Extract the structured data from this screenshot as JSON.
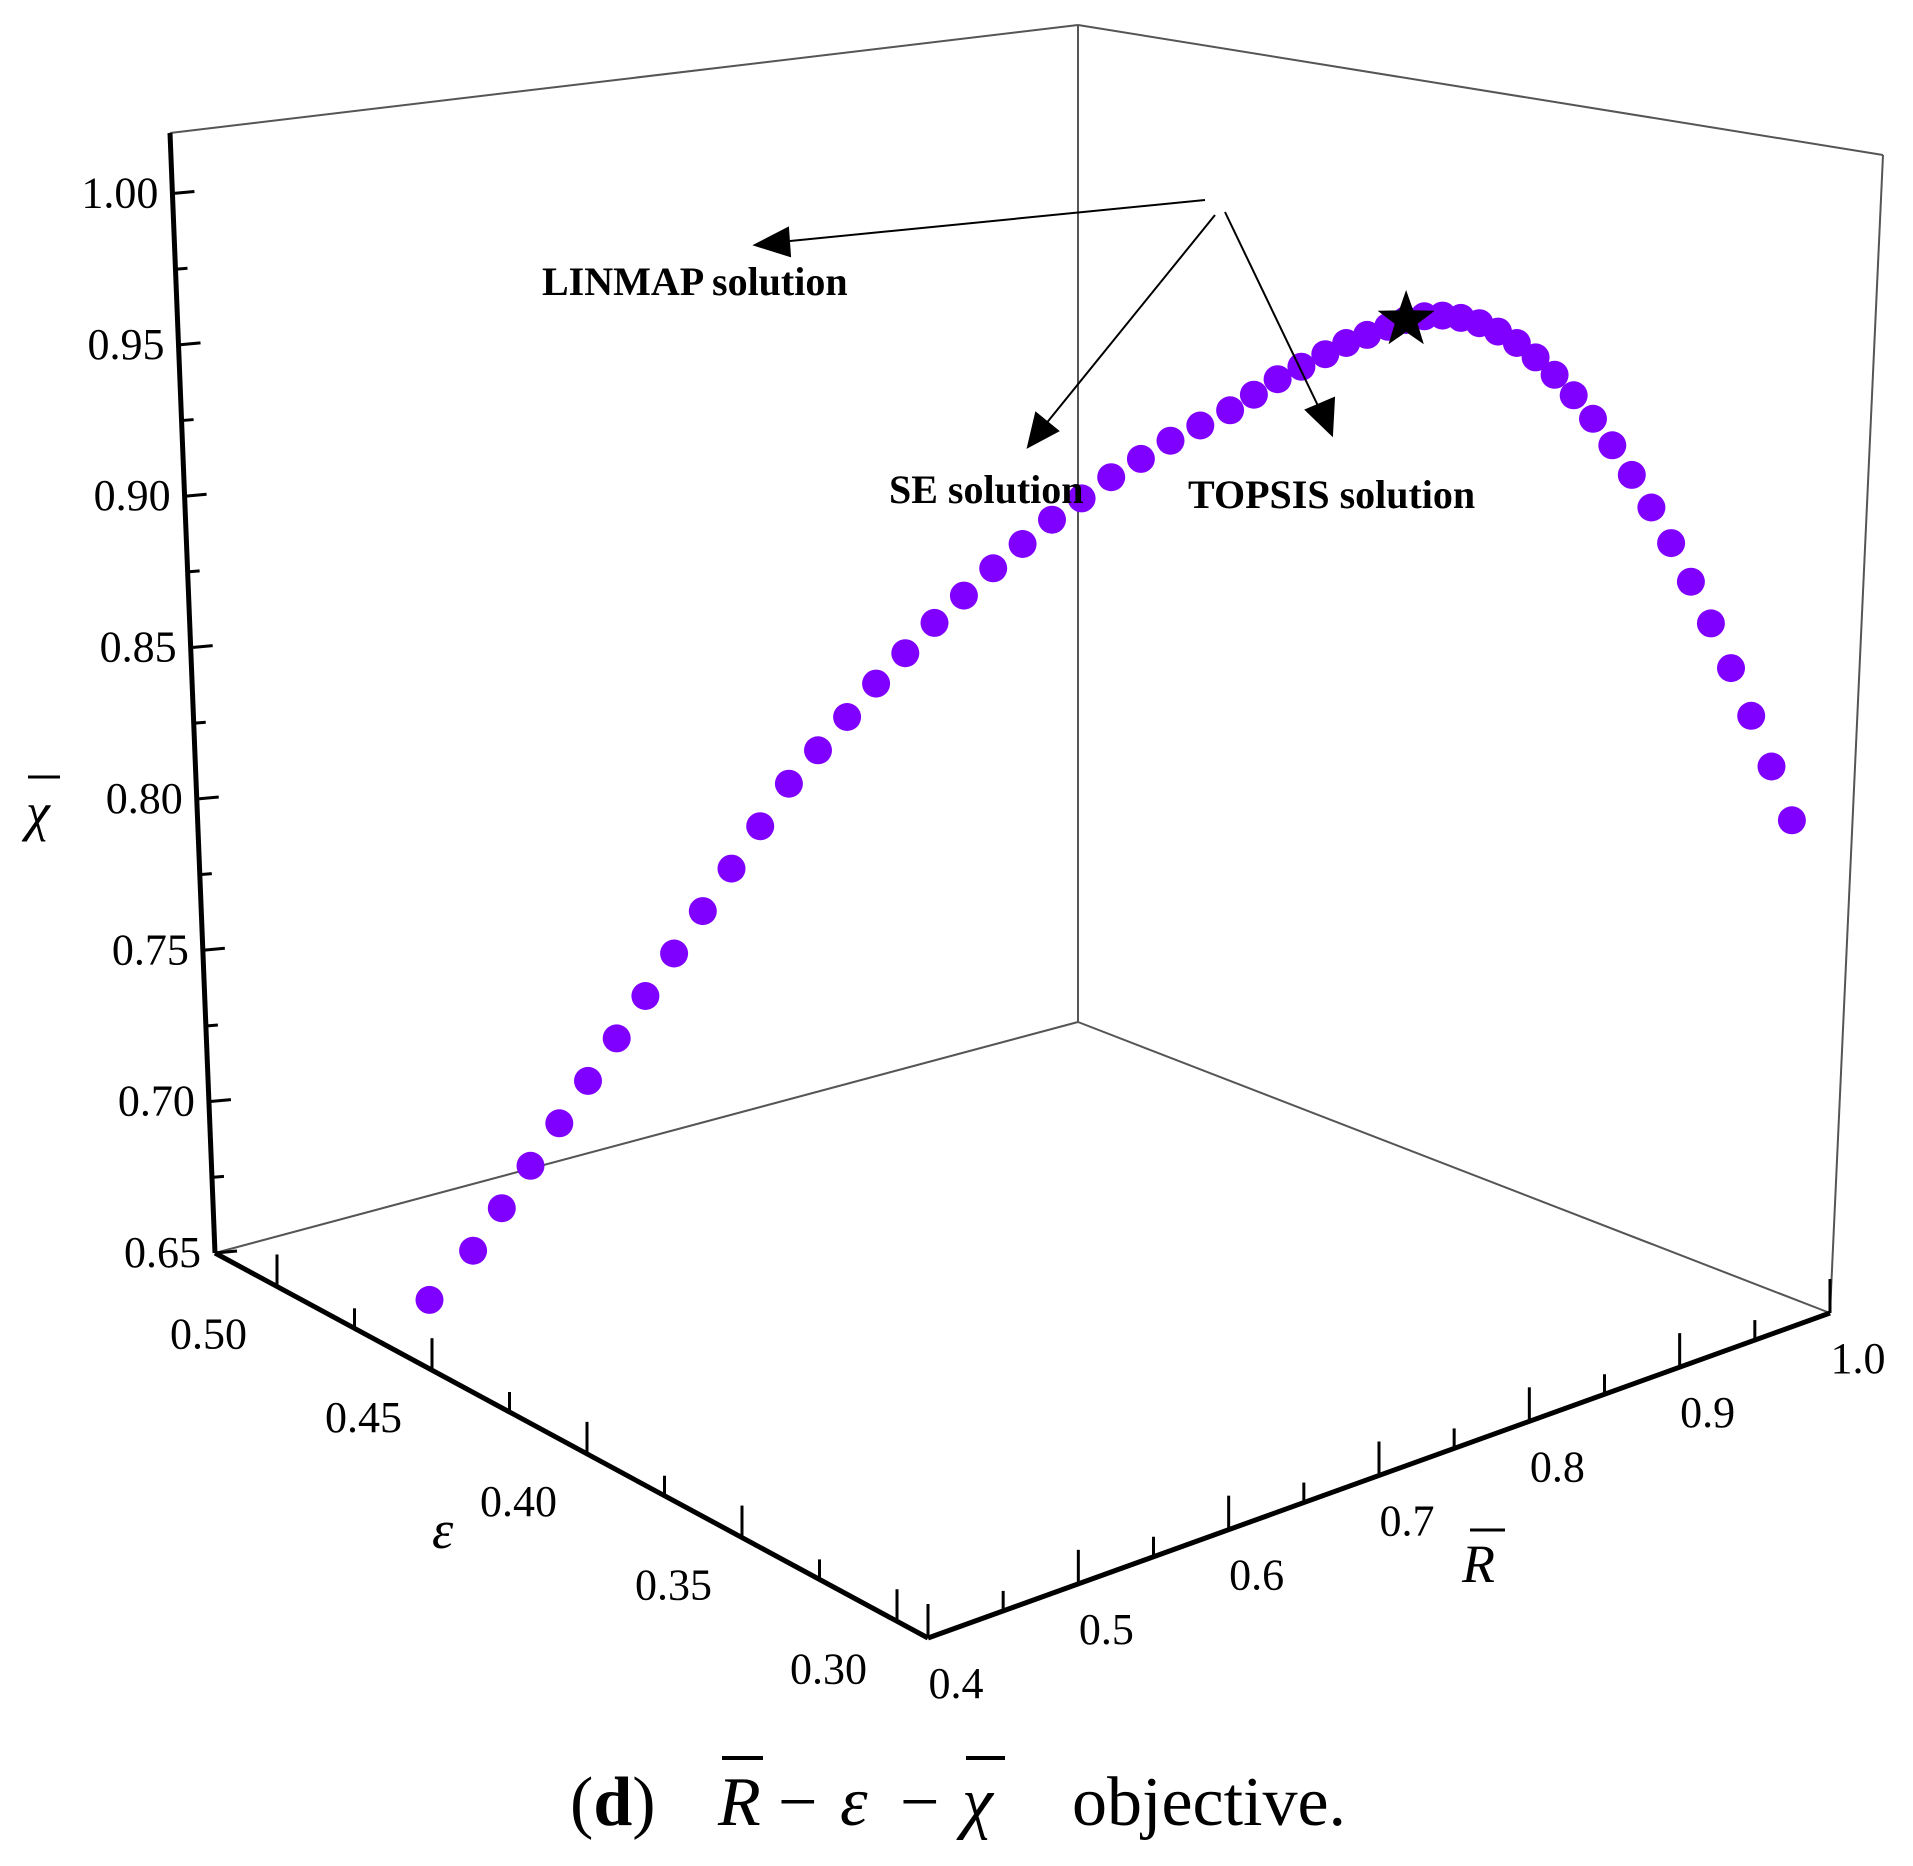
{
  "chart_data": {
    "type": "scatter3d",
    "title": "",
    "caption": {
      "panel": "d",
      "text_parts": [
        "R",
        "−",
        "ε",
        "−",
        "χ",
        "objective."
      ]
    },
    "axes": {
      "x": {
        "label": "R",
        "ticks": [
          "0.4",
          "0.5",
          "0.6",
          "0.7",
          "0.8",
          "0.9",
          "1.0"
        ],
        "range": [
          0.4,
          1.0
        ]
      },
      "y": {
        "label": "ε",
        "ticks": [
          "0.30",
          "0.35",
          "0.40",
          "0.45",
          "0.50"
        ],
        "range": [
          0.29,
          0.52
        ]
      },
      "z": {
        "label": "χ",
        "ticks": [
          "0.65",
          "0.70",
          "0.75",
          "0.80",
          "0.85",
          "0.90",
          "0.95",
          "1.00"
        ],
        "range": [
          0.65,
          1.02
        ]
      }
    },
    "grid": false,
    "colors": {
      "points": "#8000ff",
      "marker": "#000000",
      "axes": "#000000"
    },
    "series": [
      {
        "marker": "circle",
        "points": [
          [
            0.44,
            0.47,
            0.655
          ],
          [
            0.45,
            0.46,
            0.675
          ],
          [
            0.46,
            0.455,
            0.69
          ],
          [
            0.47,
            0.45,
            0.705
          ],
          [
            0.48,
            0.445,
            0.72
          ],
          [
            0.49,
            0.44,
            0.735
          ],
          [
            0.5,
            0.435,
            0.75
          ],
          [
            0.51,
            0.43,
            0.765
          ],
          [
            0.52,
            0.425,
            0.78
          ],
          [
            0.53,
            0.42,
            0.795
          ],
          [
            0.54,
            0.415,
            0.81
          ],
          [
            0.55,
            0.41,
            0.825
          ],
          [
            0.56,
            0.405,
            0.84
          ],
          [
            0.57,
            0.4,
            0.852
          ],
          [
            0.58,
            0.395,
            0.864
          ],
          [
            0.59,
            0.39,
            0.876
          ],
          [
            0.6,
            0.385,
            0.887
          ],
          [
            0.61,
            0.38,
            0.898
          ],
          [
            0.62,
            0.375,
            0.908
          ],
          [
            0.63,
            0.37,
            0.918
          ],
          [
            0.64,
            0.365,
            0.927
          ],
          [
            0.65,
            0.36,
            0.936
          ],
          [
            0.66,
            0.355,
            0.944
          ],
          [
            0.67,
            0.35,
            0.952
          ],
          [
            0.68,
            0.345,
            0.959
          ],
          [
            0.69,
            0.34,
            0.966
          ],
          [
            0.7,
            0.335,
            0.972
          ],
          [
            0.71,
            0.33,
            0.978
          ],
          [
            0.72,
            0.327,
            0.983
          ],
          [
            0.73,
            0.324,
            0.988
          ],
          [
            0.74,
            0.321,
            0.992
          ],
          [
            0.75,
            0.318,
            0.996
          ],
          [
            0.76,
            0.316,
            0.999
          ],
          [
            0.77,
            0.314,
            1.001
          ],
          [
            0.78,
            0.312,
            1.003
          ],
          [
            0.79,
            0.311,
            1.004
          ],
          [
            0.8,
            0.31,
            1.004
          ],
          [
            0.81,
            0.309,
            1.003
          ],
          [
            0.82,
            0.308,
            1.001
          ],
          [
            0.83,
            0.307,
            0.998
          ],
          [
            0.84,
            0.306,
            0.994
          ],
          [
            0.85,
            0.305,
            0.989
          ],
          [
            0.86,
            0.304,
            0.983
          ],
          [
            0.87,
            0.303,
            0.976
          ],
          [
            0.88,
            0.302,
            0.968
          ],
          [
            0.89,
            0.301,
            0.959
          ],
          [
            0.9,
            0.3,
            0.949
          ],
          [
            0.91,
            0.299,
            0.938
          ],
          [
            0.92,
            0.298,
            0.926
          ],
          [
            0.93,
            0.297,
            0.913
          ],
          [
            0.94,
            0.296,
            0.899
          ],
          [
            0.95,
            0.295,
            0.884
          ],
          [
            0.96,
            0.294,
            0.868
          ],
          [
            0.97,
            0.293,
            0.851
          ],
          [
            0.98,
            0.292,
            0.833
          ],
          [
            0.99,
            0.291,
            0.814
          ]
        ]
      }
    ],
    "highlight": {
      "marker": "star",
      "point": [
        0.79,
        0.311,
        1.004
      ]
    },
    "annotations": [
      {
        "text": "LINMAP solution"
      },
      {
        "text": "SE solution"
      },
      {
        "text": "TOPSIS solution"
      }
    ]
  }
}
